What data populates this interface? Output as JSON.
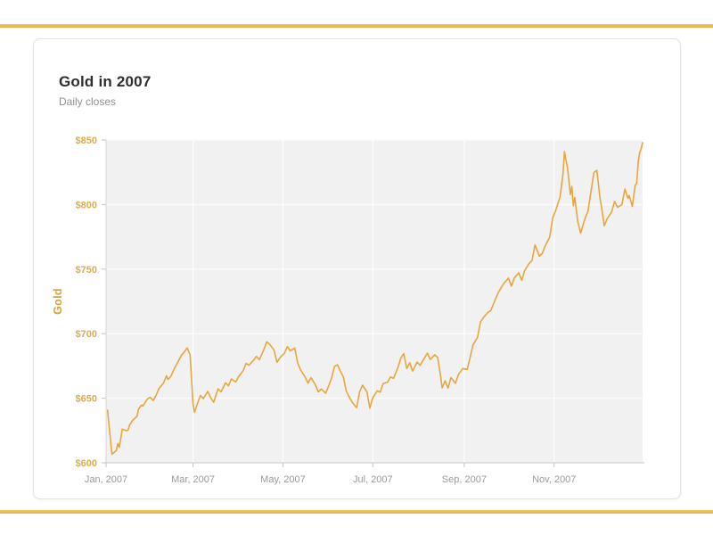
{
  "page": {
    "accent_color": "#ECB54D"
  },
  "card": {
    "title": "Gold in 2007",
    "subtitle": "Daily closes"
  },
  "chart_data": {
    "type": "line",
    "title": "Gold in 2007",
    "subtitle": "Daily closes",
    "series_name": "Gold",
    "y_axis_title": "Gold",
    "x_axis_unit": "date (2007)",
    "line_color": "#e7a63e",
    "tick_label_color_y": "#e0ac48",
    "tick_label_color_x": "#9a9a9a",
    "plot_background": "#f1f1f1",
    "gridline_color": "#fcfcfc",
    "grid": true,
    "legend": "none",
    "x_domain_days": [
      1,
      365
    ],
    "ylim": [
      600,
      850
    ],
    "x_ticks": [
      {
        "day": 1,
        "label": "Jan, 2007"
      },
      {
        "day": 60,
        "label": "Mar, 2007"
      },
      {
        "day": 121,
        "label": "May, 2007"
      },
      {
        "day": 182,
        "label": "Jul, 2007"
      },
      {
        "day": 244,
        "label": "Sep, 2007"
      },
      {
        "day": 305,
        "label": "Nov, 2007"
      }
    ],
    "y_ticks": [
      {
        "value": 600,
        "label": "$600"
      },
      {
        "value": 650,
        "label": "$650"
      },
      {
        "value": 700,
        "label": "$700"
      },
      {
        "value": 750,
        "label": "$750"
      },
      {
        "value": 800,
        "label": "$800"
      },
      {
        "value": 850,
        "label": "$850"
      }
    ],
    "points": [
      [
        2,
        640.7
      ],
      [
        3,
        629.2
      ],
      [
        5,
        606.6
      ],
      [
        8,
        609.5
      ],
      [
        9,
        614.9
      ],
      [
        10,
        612.1
      ],
      [
        12,
        626.1
      ],
      [
        15,
        624.8
      ],
      [
        16,
        625.5
      ],
      [
        17,
        629.4
      ],
      [
        19,
        632.9
      ],
      [
        22,
        636
      ],
      [
        23,
        641.5
      ],
      [
        25,
        644.7
      ],
      [
        26,
        643.9
      ],
      [
        29,
        649.4
      ],
      [
        31,
        650.7
      ],
      [
        33,
        648.2
      ],
      [
        35,
        652.4
      ],
      [
        37,
        657.6
      ],
      [
        40,
        661.8
      ],
      [
        42,
        667.4
      ],
      [
        43,
        664.5
      ],
      [
        45,
        667
      ],
      [
        47,
        672.2
      ],
      [
        50,
        678.6
      ],
      [
        52,
        683
      ],
      [
        54,
        685.8
      ],
      [
        56,
        689
      ],
      [
        58,
        683.5
      ],
      [
        60,
        645.5
      ],
      [
        61,
        639.1
      ],
      [
        63,
        645.8
      ],
      [
        65,
        652.1
      ],
      [
        67,
        649.7
      ],
      [
        70,
        655.3
      ],
      [
        72,
        650.4
      ],
      [
        74,
        646.8
      ],
      [
        77,
        657.3
      ],
      [
        79,
        654.9
      ],
      [
        82,
        661.9
      ],
      [
        84,
        659.6
      ],
      [
        86,
        664.9
      ],
      [
        89,
        662.6
      ],
      [
        91,
        666.8
      ],
      [
        94,
        671.3
      ],
      [
        96,
        676.9
      ],
      [
        98,
        675.6
      ],
      [
        101,
        679.3
      ],
      [
        103,
        682.4
      ],
      [
        105,
        679.8
      ],
      [
        108,
        687.6
      ],
      [
        110,
        693.7
      ],
      [
        112,
        691.8
      ],
      [
        115,
        687.2
      ],
      [
        117,
        677.8
      ],
      [
        119,
        681.4
      ],
      [
        122,
        684.8
      ],
      [
        124,
        690
      ],
      [
        126,
        686.6
      ],
      [
        129,
        688.9
      ],
      [
        131,
        677.3
      ],
      [
        133,
        671.9
      ],
      [
        136,
        666.5
      ],
      [
        138,
        661.7
      ],
      [
        140,
        665.9
      ],
      [
        143,
        660.6
      ],
      [
        145,
        654.8
      ],
      [
        147,
        657.2
      ],
      [
        150,
        653.9
      ],
      [
        152,
        659.4
      ],
      [
        154,
        665.5
      ],
      [
        156,
        674.5
      ],
      [
        158,
        675.9
      ],
      [
        160,
        670.8
      ],
      [
        162,
        666.4
      ],
      [
        164,
        655.4
      ],
      [
        166,
        650.9
      ],
      [
        168,
        646.8
      ],
      [
        171,
        642.6
      ],
      [
        173,
        655
      ],
      [
        175,
        660.1
      ],
      [
        178,
        654.9
      ],
      [
        180,
        642.3
      ],
      [
        182,
        650.5
      ],
      [
        185,
        655.7
      ],
      [
        187,
        654.6
      ],
      [
        189,
        661.4
      ],
      [
        192,
        662.4
      ],
      [
        194,
        666.5
      ],
      [
        196,
        665.4
      ],
      [
        199,
        673.7
      ],
      [
        201,
        681.2
      ],
      [
        203,
        684.5
      ],
      [
        205,
        673
      ],
      [
        207,
        677.5
      ],
      [
        209,
        671
      ],
      [
        212,
        678
      ],
      [
        214,
        675.5
      ],
      [
        217,
        681
      ],
      [
        219,
        684.9
      ],
      [
        221,
        680
      ],
      [
        224,
        683.6
      ],
      [
        226,
        681.5
      ],
      [
        228,
        667
      ],
      [
        229,
        658
      ],
      [
        231,
        663.5
      ],
      [
        233,
        657.9
      ],
      [
        235,
        666
      ],
      [
        238,
        661.5
      ],
      [
        240,
        668.2
      ],
      [
        243,
        673
      ],
      [
        246,
        672.3
      ],
      [
        248,
        681.6
      ],
      [
        250,
        691.4
      ],
      [
        253,
        697.2
      ],
      [
        255,
        709
      ],
      [
        257,
        712.4
      ],
      [
        260,
        716.4
      ],
      [
        262,
        717.9
      ],
      [
        264,
        723.5
      ],
      [
        267,
        731.5
      ],
      [
        269,
        735.5
      ],
      [
        271,
        739.1
      ],
      [
        274,
        743
      ],
      [
        276,
        736.9
      ],
      [
        278,
        743.1
      ],
      [
        281,
        747.2
      ],
      [
        283,
        741.3
      ],
      [
        285,
        748.8
      ],
      [
        288,
        754.4
      ],
      [
        290,
        756.7
      ],
      [
        292,
        768.7
      ],
      [
        295,
        760
      ],
      [
        297,
        762.1
      ],
      [
        299,
        768
      ],
      [
        302,
        774.8
      ],
      [
        304,
        789.5
      ],
      [
        306,
        795.3
      ],
      [
        309,
        806
      ],
      [
        311,
        823.5
      ],
      [
        312,
        841.1
      ],
      [
        313,
        834.5
      ],
      [
        314,
        829
      ],
      [
        316,
        807.7
      ],
      [
        317,
        814
      ],
      [
        318,
        799
      ],
      [
        319,
        805.5
      ],
      [
        321,
        787
      ],
      [
        323,
        778
      ],
      [
        326,
        789.3
      ],
      [
        328,
        795.1
      ],
      [
        330,
        810
      ],
      [
        332,
        824.8
      ],
      [
        334,
        826.5
      ],
      [
        336,
        806
      ],
      [
        338,
        792
      ],
      [
        339,
        783.5
      ],
      [
        341,
        789.1
      ],
      [
        344,
        794.3
      ],
      [
        346,
        802.5
      ],
      [
        348,
        797.8
      ],
      [
        351,
        800
      ],
      [
        353,
        811.9
      ],
      [
        355,
        804.8
      ],
      [
        356,
        807
      ],
      [
        358,
        798.5
      ],
      [
        360,
        815
      ],
      [
        361,
        816.5
      ],
      [
        362,
        832.5
      ],
      [
        363,
        840
      ],
      [
        364,
        843
      ],
      [
        365,
        848
      ]
    ]
  }
}
